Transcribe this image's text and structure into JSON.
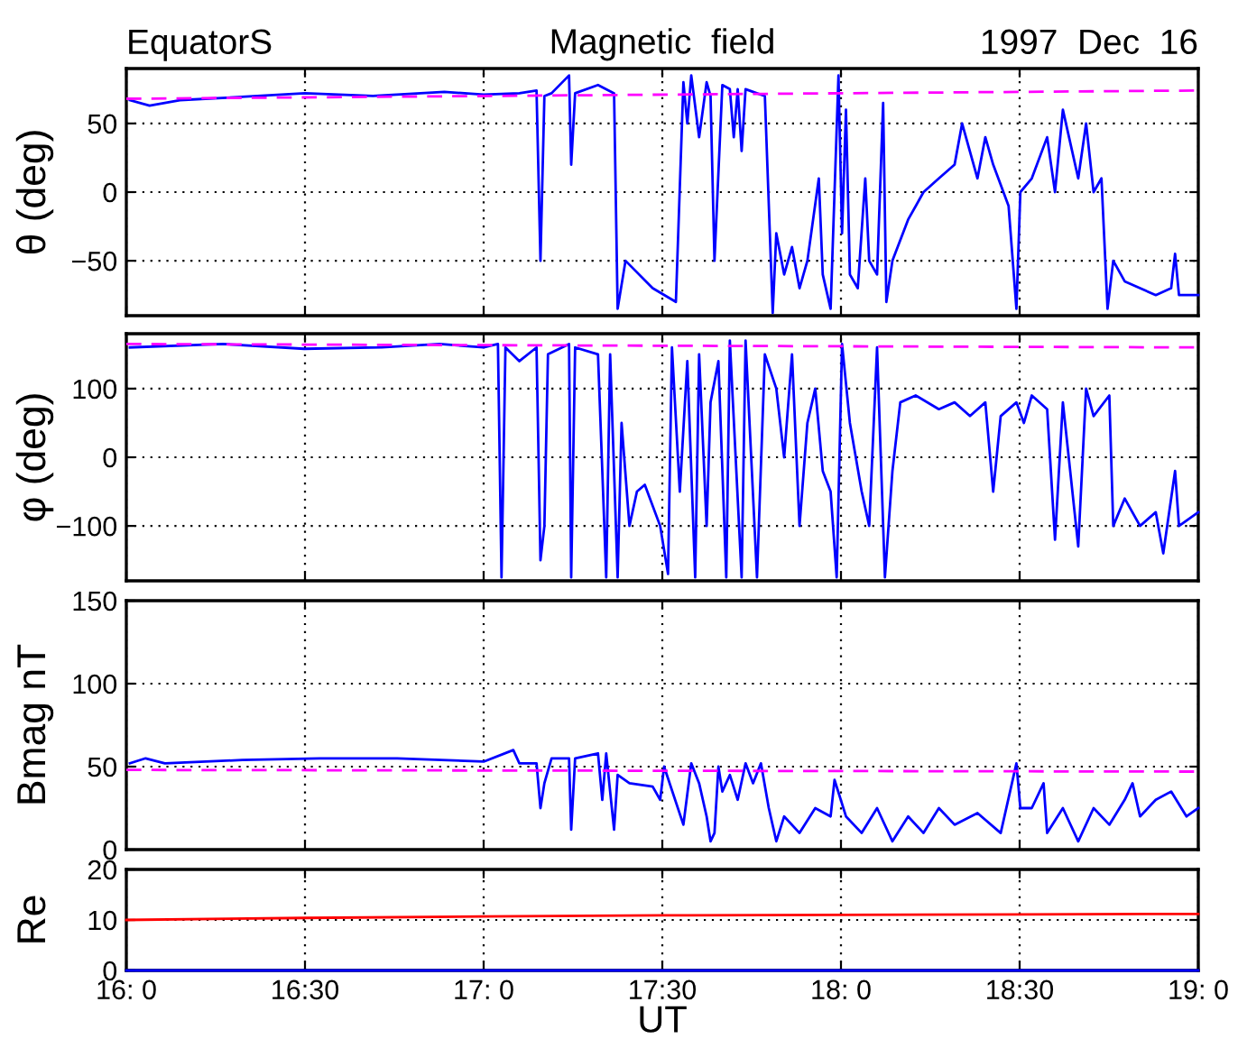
{
  "chart_data": [
    {
      "type": "line",
      "title": "Magnetic  field",
      "annotations": [
        "EquatorS",
        "1997  Dec  16"
      ],
      "ylabel": "θ (deg)",
      "xlim": [
        16,
        19
      ],
      "ylim": [
        -90,
        90
      ],
      "yticks": [
        -50,
        0,
        50
      ],
      "xticks": [
        {
          "value": 16,
          "label": null
        },
        {
          "value": 16.5,
          "label": null
        },
        {
          "value": 17,
          "label": null
        },
        {
          "value": 17.5,
          "label": null
        },
        {
          "value": 18,
          "label": null
        },
        {
          "value": 18.5,
          "label": null
        },
        {
          "value": 19,
          "label": null
        }
      ],
      "tick_labels": "y",
      "grid": true,
      "marker": "none",
      "series": [
        {
          "color": "#0000ff",
          "line_style": "solid",
          "x": [
            16.01,
            16.065,
            16.15,
            16.3,
            16.5,
            16.69,
            16.89,
            17.0,
            17.1,
            17.148,
            17.159,
            17.17,
            17.19,
            17.239,
            17.245,
            17.256,
            17.32,
            17.365,
            17.375,
            17.397,
            17.473,
            17.538,
            17.559,
            17.57,
            17.581,
            17.603,
            17.624,
            17.635,
            17.646,
            17.668,
            17.689,
            17.7,
            17.711,
            17.722,
            17.733,
            17.754,
            17.787,
            17.809,
            17.819,
            17.841,
            17.863,
            17.884,
            17.906,
            17.938,
            17.949,
            17.971,
            17.993,
            18.003,
            18.014,
            18.025,
            18.047,
            18.068,
            18.079,
            18.101,
            18.118,
            18.127,
            18.144,
            18.188,
            18.231,
            18.274,
            18.318,
            18.339,
            18.382,
            18.404,
            18.426,
            18.469,
            18.491,
            18.502,
            18.534,
            18.577,
            18.599,
            18.621,
            18.664,
            18.686,
            18.707,
            18.729,
            18.746,
            18.762,
            18.794,
            18.837,
            18.881,
            18.924,
            18.935,
            18.946,
            19.0
          ],
          "values": [
            67,
            63,
            67,
            69,
            72,
            70,
            73,
            71,
            72,
            74,
            -50,
            70,
            72,
            85,
            20,
            72,
            78,
            72,
            -85,
            -50,
            -70,
            -80,
            80,
            50,
            85,
            40,
            80,
            70,
            -50,
            78,
            75,
            40,
            75,
            30,
            75,
            73,
            70,
            -88,
            -30,
            -60,
            -40,
            -70,
            -50,
            10,
            -60,
            -85,
            85,
            -30,
            60,
            -60,
            -70,
            10,
            -50,
            -60,
            65,
            -80,
            -50,
            -20,
            0,
            10,
            20,
            50,
            10,
            40,
            20,
            -10,
            -85,
            0,
            10,
            40,
            0,
            60,
            10,
            50,
            0,
            10,
            -85,
            -50,
            -65,
            -70,
            -75,
            -70,
            -45,
            -75,
            -75
          ]
        },
        {
          "color": "#ff00ff",
          "line_style": "dashed",
          "x": [
            16,
            19
          ],
          "values": [
            68,
            74
          ]
        }
      ]
    },
    {
      "type": "line",
      "ylabel": "φ (deg)",
      "xlim": [
        16,
        19
      ],
      "ylim": [
        -180,
        180
      ],
      "yticks": [
        -100,
        0,
        100
      ],
      "xticks": [
        {
          "value": 16,
          "label": null
        },
        {
          "value": 16.5,
          "label": null
        },
        {
          "value": 17,
          "label": null
        },
        {
          "value": 17.5,
          "label": null
        },
        {
          "value": 18,
          "label": null
        },
        {
          "value": 18.5,
          "label": null
        },
        {
          "value": 19,
          "label": null
        }
      ],
      "tick_labels": "y",
      "grid": true,
      "marker": "none",
      "series": [
        {
          "color": "#0000ff",
          "line_style": "solid",
          "x": [
            16.01,
            16.271,
            16.498,
            16.715,
            16.877,
            17.0,
            17.04,
            17.05,
            17.061,
            17.1,
            17.148,
            17.159,
            17.17,
            17.18,
            17.239,
            17.245,
            17.256,
            17.32,
            17.343,
            17.354,
            17.375,
            17.386,
            17.408,
            17.429,
            17.451,
            17.494,
            17.516,
            17.527,
            17.549,
            17.57,
            17.592,
            17.603,
            17.624,
            17.635,
            17.657,
            17.679,
            17.689,
            17.722,
            17.733,
            17.765,
            17.787,
            17.819,
            17.841,
            17.863,
            17.884,
            17.906,
            17.928,
            17.949,
            17.971,
            17.988,
            18.003,
            18.025,
            18.058,
            18.079,
            18.101,
            18.123,
            18.144,
            18.166,
            18.209,
            18.274,
            18.318,
            18.361,
            18.404,
            18.426,
            18.447,
            18.491,
            18.512,
            18.534,
            18.577,
            18.599,
            18.621,
            18.664,
            18.686,
            18.707,
            18.751,
            18.762,
            18.794,
            18.837,
            18.881,
            18.902,
            18.935,
            18.946,
            19.0
          ],
          "values": [
            160,
            165,
            158,
            160,
            165,
            160,
            165,
            -175,
            160,
            140,
            160,
            -150,
            -100,
            150,
            165,
            -175,
            160,
            150,
            -175,
            150,
            -175,
            50,
            -100,
            -50,
            -40,
            -100,
            -170,
            160,
            -50,
            140,
            -175,
            150,
            -100,
            80,
            140,
            -175,
            170,
            -175,
            170,
            -175,
            150,
            100,
            0,
            150,
            -100,
            50,
            100,
            -20,
            -50,
            -175,
            165,
            50,
            -50,
            -100,
            160,
            -175,
            -20,
            80,
            90,
            70,
            80,
            60,
            80,
            -50,
            60,
            80,
            50,
            90,
            70,
            -120,
            80,
            -130,
            100,
            60,
            90,
            -100,
            -60,
            -100,
            -80,
            -140,
            -20,
            -100,
            -80
          ]
        },
        {
          "color": "#ff00ff",
          "line_style": "dashed",
          "x": [
            16,
            19
          ],
          "values": [
            165,
            160
          ]
        }
      ]
    },
    {
      "type": "line",
      "ylabel": "Bmag nT",
      "xlim": [
        16,
        19
      ],
      "ylim": [
        0,
        150
      ],
      "yticks": [
        0,
        50,
        100,
        150
      ],
      "xticks": [
        {
          "value": 16,
          "label": null
        },
        {
          "value": 16.5,
          "label": null
        },
        {
          "value": 17,
          "label": null
        },
        {
          "value": 17.5,
          "label": null
        },
        {
          "value": 18,
          "label": null
        },
        {
          "value": 18.5,
          "label": null
        },
        {
          "value": 19,
          "label": null
        }
      ],
      "tick_labels": "y",
      "grid": true,
      "marker": "none",
      "series": [
        {
          "color": "#0000ff",
          "line_style": "solid",
          "x": [
            16.01,
            16.054,
            16.108,
            16.325,
            16.541,
            16.758,
            17.0,
            17.083,
            17.1,
            17.148,
            17.159,
            17.17,
            17.19,
            17.239,
            17.245,
            17.256,
            17.32,
            17.332,
            17.343,
            17.365,
            17.375,
            17.408,
            17.473,
            17.494,
            17.505,
            17.559,
            17.581,
            17.603,
            17.624,
            17.635,
            17.646,
            17.657,
            17.668,
            17.689,
            17.711,
            17.733,
            17.754,
            17.776,
            17.798,
            17.819,
            17.841,
            17.884,
            17.928,
            17.971,
            17.982,
            18.014,
            18.058,
            18.101,
            18.144,
            18.188,
            18.231,
            18.274,
            18.318,
            18.382,
            18.447,
            18.491,
            18.502,
            18.534,
            18.567,
            18.577,
            18.621,
            18.664,
            18.707,
            18.751,
            18.794,
            18.816,
            18.837,
            18.881,
            18.924,
            18.967,
            19.0
          ],
          "values": [
            52,
            55,
            52,
            54,
            55,
            55,
            53,
            60,
            52,
            52,
            25,
            40,
            55,
            55,
            12,
            55,
            58,
            30,
            58,
            12,
            45,
            40,
            38,
            30,
            50,
            15,
            52,
            40,
            20,
            5,
            10,
            50,
            35,
            45,
            30,
            52,
            40,
            52,
            25,
            5,
            20,
            10,
            25,
            20,
            42,
            20,
            10,
            25,
            5,
            20,
            10,
            25,
            15,
            22,
            10,
            52,
            25,
            25,
            40,
            10,
            25,
            5,
            25,
            15,
            30,
            40,
            20,
            30,
            35,
            20,
            25
          ]
        },
        {
          "color": "#ff00ff",
          "line_style": "dashed",
          "x": [
            16,
            19
          ],
          "values": [
            48,
            47
          ]
        }
      ]
    },
    {
      "type": "line",
      "ylabel": "Re",
      "xlabel": "UT",
      "xlim": [
        16,
        19
      ],
      "ylim": [
        0,
        20
      ],
      "yticks": [
        0,
        10,
        20
      ],
      "xticks": [
        {
          "value": 16,
          "label": "16: 0"
        },
        {
          "value": 16.5,
          "label": "16:30"
        },
        {
          "value": 17,
          "label": "17: 0"
        },
        {
          "value": 17.5,
          "label": "17:30"
        },
        {
          "value": 18,
          "label": "18: 0"
        },
        {
          "value": 18.5,
          "label": "18:30"
        },
        {
          "value": 19,
          "label": "19: 0"
        }
      ],
      "grid": true,
      "marker": "none",
      "series": [
        {
          "color": "#ff0000",
          "line_style": "solid",
          "x": [
            16,
            16.5,
            17,
            17.5,
            18,
            18.5,
            19
          ],
          "values": [
            10,
            10.4,
            10.7,
            10.9,
            11.0,
            11.1,
            11.2
          ]
        },
        {
          "color": "#0000ff",
          "line_style": "solid",
          "x": [
            16,
            19
          ],
          "values": [
            0,
            0
          ]
        }
      ]
    }
  ]
}
